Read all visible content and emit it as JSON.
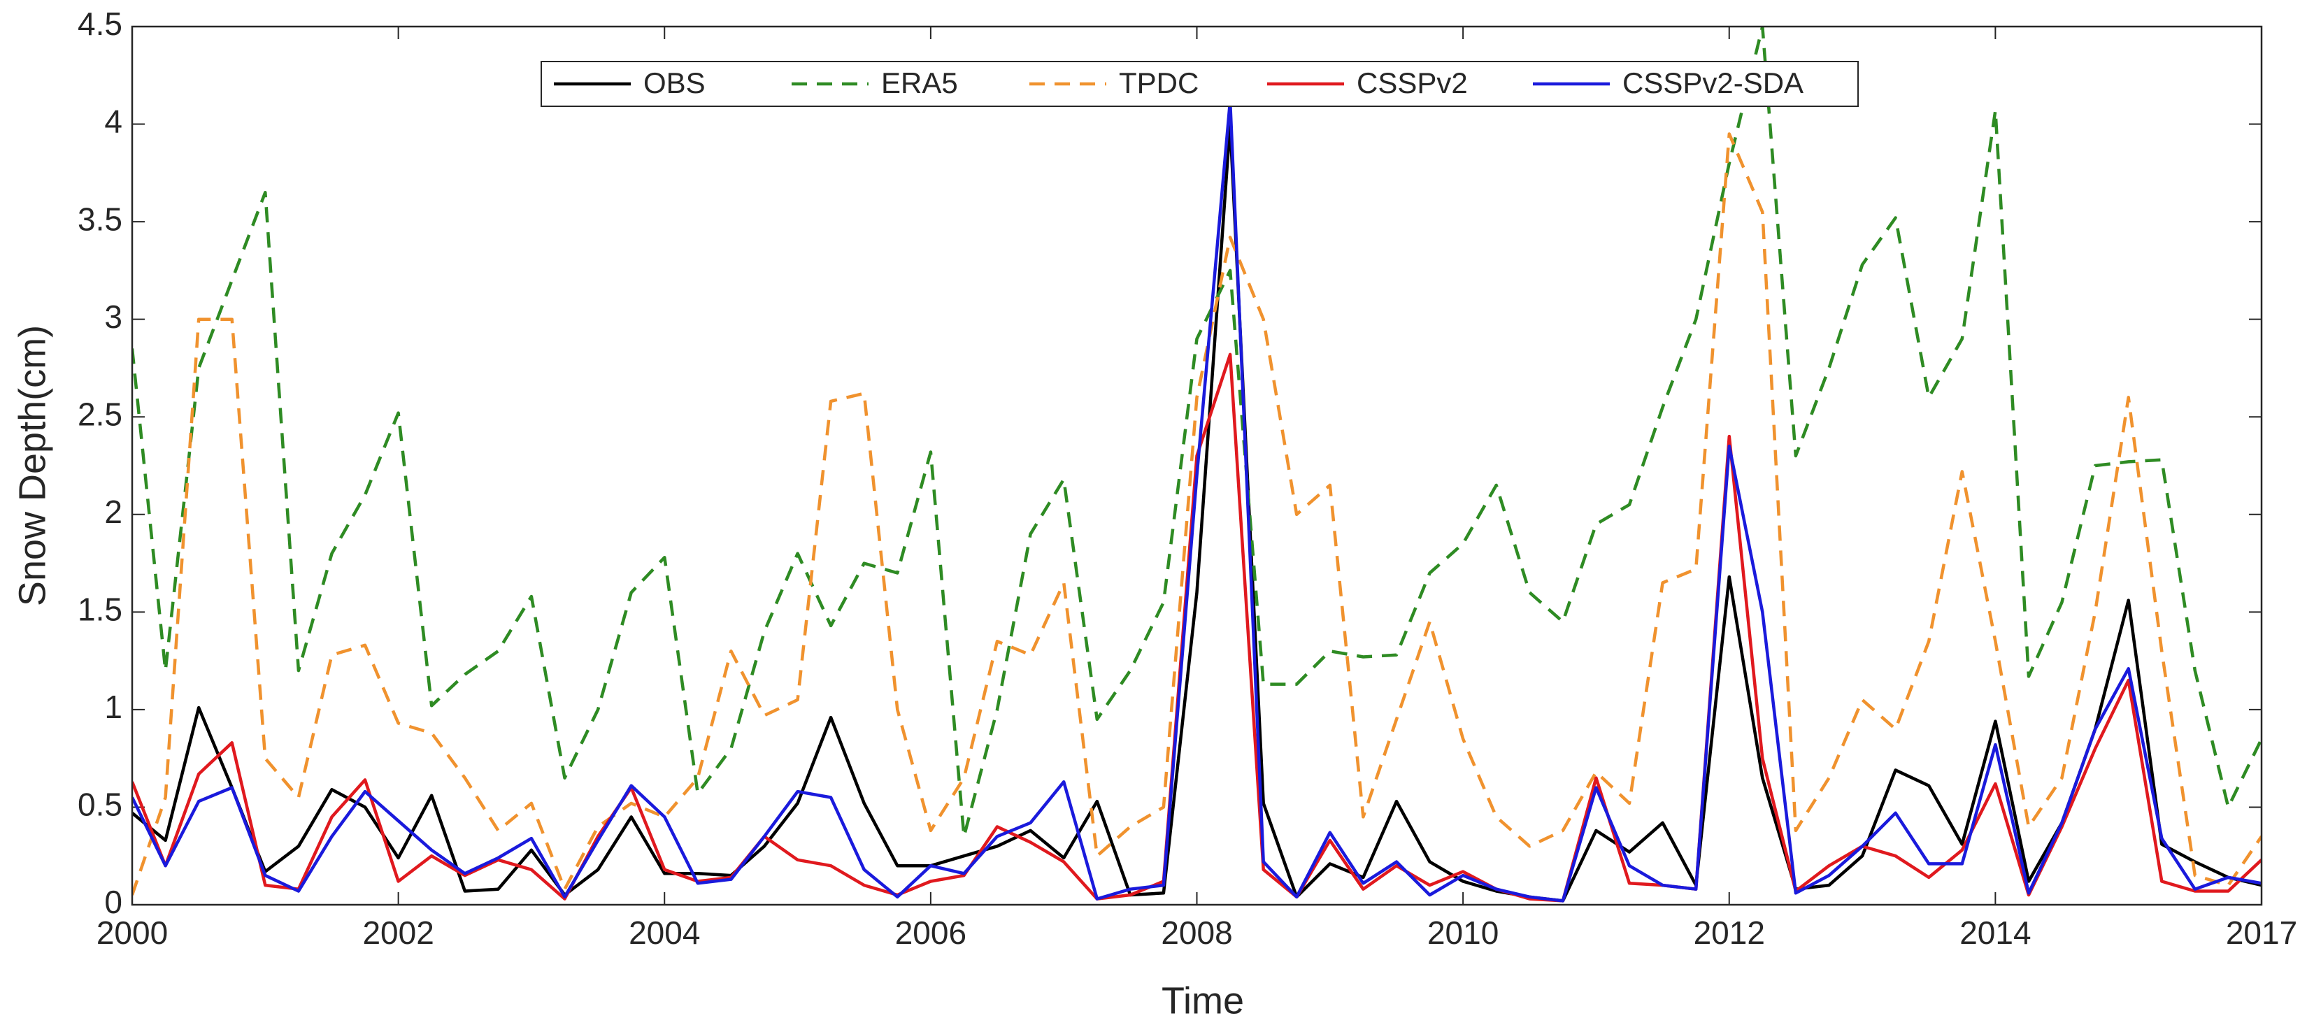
{
  "chart_data": {
    "type": "line",
    "xlabel": "Time",
    "ylabel": "Snow Depth(cm)",
    "categories": [
      "2000",
      null,
      null,
      null,
      null,
      null,
      null,
      null,
      "2002",
      null,
      null,
      null,
      null,
      null,
      null,
      null,
      "2004",
      null,
      null,
      null,
      null,
      null,
      null,
      null,
      "2006",
      null,
      null,
      null,
      null,
      null,
      null,
      null,
      "2008",
      null,
      null,
      null,
      null,
      null,
      null,
      null,
      "2010",
      null,
      null,
      null,
      null,
      null,
      null,
      null,
      "2012",
      null,
      null,
      null,
      null,
      null,
      null,
      null,
      "2014",
      null,
      null,
      null,
      null,
      null,
      null,
      null,
      "2017"
    ],
    "series": [
      {
        "name": "OBS",
        "color": "#000000",
        "style": "solid",
        "values": [
          0.47,
          0.33,
          1.01,
          0.6,
          0.17,
          0.3,
          0.59,
          0.5,
          0.24,
          0.56,
          0.07,
          0.08,
          0.28,
          0.05,
          0.18,
          0.45,
          0.16,
          0.16,
          0.15,
          0.3,
          0.52,
          0.96,
          0.52,
          0.2,
          0.2,
          0.25,
          0.3,
          0.38,
          0.24,
          0.53,
          0.05,
          0.06,
          1.6,
          4.0,
          0.52,
          0.04,
          0.21,
          0.14,
          0.53,
          0.22,
          0.12,
          0.07,
          0.04,
          0.02,
          0.38,
          0.27,
          0.42,
          0.1,
          1.68,
          0.65,
          0.08,
          0.1,
          0.25,
          0.69,
          0.61,
          0.31,
          0.94,
          0.12,
          0.42,
          0.9,
          1.56,
          0.31,
          0.22,
          0.14,
          0.1
        ]
      },
      {
        "name": "ERA5",
        "color": "#2e8b23",
        "style": "dashed",
        "values": [
          2.85,
          1.2,
          2.75,
          3.2,
          3.65,
          1.2,
          1.8,
          2.1,
          2.52,
          1.02,
          1.18,
          1.3,
          1.58,
          0.65,
          1.0,
          1.6,
          1.78,
          0.57,
          0.8,
          1.4,
          1.8,
          1.43,
          1.75,
          1.7,
          2.32,
          0.35,
          1.0,
          1.9,
          2.18,
          0.95,
          1.2,
          1.55,
          2.9,
          3.25,
          1.13,
          1.13,
          1.3,
          1.27,
          1.28,
          1.7,
          1.85,
          2.15,
          1.6,
          1.45,
          1.95,
          2.05,
          2.55,
          3.0,
          3.8,
          4.5,
          2.3,
          2.75,
          3.28,
          3.52,
          2.6,
          2.9,
          4.07,
          1.17,
          1.55,
          2.25,
          2.27,
          2.28,
          1.2,
          0.5,
          0.85
        ]
      },
      {
        "name": "TPDC",
        "color": "#f0922e",
        "style": "dashed",
        "values": [
          0.05,
          0.55,
          3.0,
          3.0,
          0.75,
          0.55,
          1.28,
          1.33,
          0.93,
          0.88,
          0.65,
          0.38,
          0.52,
          0.08,
          0.4,
          0.52,
          0.45,
          0.65,
          1.3,
          0.97,
          1.05,
          2.58,
          2.62,
          1.0,
          0.38,
          0.65,
          1.35,
          1.28,
          1.65,
          0.25,
          0.4,
          0.5,
          2.6,
          3.42,
          3.0,
          2.0,
          2.15,
          0.45,
          0.95,
          1.45,
          0.85,
          0.45,
          0.3,
          0.38,
          0.68,
          0.52,
          1.65,
          1.72,
          3.95,
          3.55,
          0.38,
          0.65,
          1.05,
          0.9,
          1.35,
          2.22,
          1.35,
          0.4,
          0.65,
          1.5,
          2.6,
          1.3,
          0.15,
          0.1,
          0.35
        ]
      },
      {
        "name": "CSSPv2",
        "color": "#e0191e",
        "style": "solid",
        "values": [
          0.63,
          0.2,
          0.67,
          0.83,
          0.1,
          0.08,
          0.45,
          0.64,
          0.12,
          0.25,
          0.15,
          0.23,
          0.18,
          0.03,
          0.35,
          0.6,
          0.18,
          0.12,
          0.14,
          0.35,
          0.23,
          0.2,
          0.1,
          0.05,
          0.12,
          0.15,
          0.4,
          0.32,
          0.22,
          0.03,
          0.05,
          0.12,
          2.3,
          2.82,
          0.18,
          0.04,
          0.33,
          0.08,
          0.2,
          0.1,
          0.17,
          0.08,
          0.03,
          0.02,
          0.65,
          0.11,
          0.1,
          0.08,
          2.4,
          0.75,
          0.07,
          0.2,
          0.3,
          0.25,
          0.14,
          0.28,
          0.62,
          0.05,
          0.4,
          0.8,
          1.15,
          0.12,
          0.07,
          0.07,
          0.23
        ]
      },
      {
        "name": "CSSPv2-SDA",
        "color": "#1a1adc",
        "style": "solid",
        "values": [
          0.55,
          0.2,
          0.53,
          0.6,
          0.15,
          0.07,
          0.35,
          0.58,
          0.43,
          0.28,
          0.16,
          0.24,
          0.34,
          0.04,
          0.33,
          0.61,
          0.45,
          0.11,
          0.13,
          0.35,
          0.58,
          0.55,
          0.18,
          0.04,
          0.2,
          0.16,
          0.35,
          0.42,
          0.63,
          0.03,
          0.08,
          0.1,
          2.2,
          4.12,
          0.22,
          0.04,
          0.37,
          0.11,
          0.22,
          0.05,
          0.15,
          0.08,
          0.04,
          0.02,
          0.6,
          0.2,
          0.1,
          0.08,
          2.35,
          1.5,
          0.06,
          0.15,
          0.3,
          0.47,
          0.21,
          0.21,
          0.82,
          0.06,
          0.42,
          0.9,
          1.21,
          0.34,
          0.08,
          0.14,
          0.11
        ]
      }
    ],
    "ylim": [
      0,
      4.5
    ],
    "yticks": [
      0,
      0.5,
      1,
      1.5,
      2,
      2.5,
      3,
      3.5,
      4,
      4.5
    ],
    "grid": false,
    "legend": "top"
  }
}
